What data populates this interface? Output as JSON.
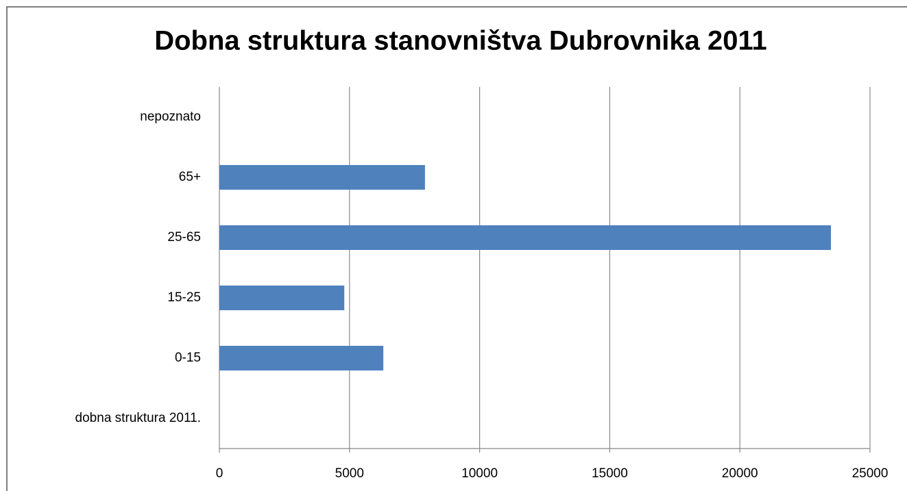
{
  "chart_data": {
    "type": "bar",
    "orientation": "horizontal",
    "title": "Dobna struktura stanovništva Dubrovnika 2011",
    "categories": [
      "dobna struktura 2011.",
      "0-15",
      "15-25",
      "25-65",
      "65+",
      "nepoznato"
    ],
    "values": [
      null,
      6300,
      4800,
      23500,
      7900,
      null
    ],
    "color": "#4f81bd",
    "xlim": [
      0,
      25000
    ],
    "xticks": [
      0,
      5000,
      10000,
      15000,
      20000,
      25000
    ],
    "grid": true
  }
}
